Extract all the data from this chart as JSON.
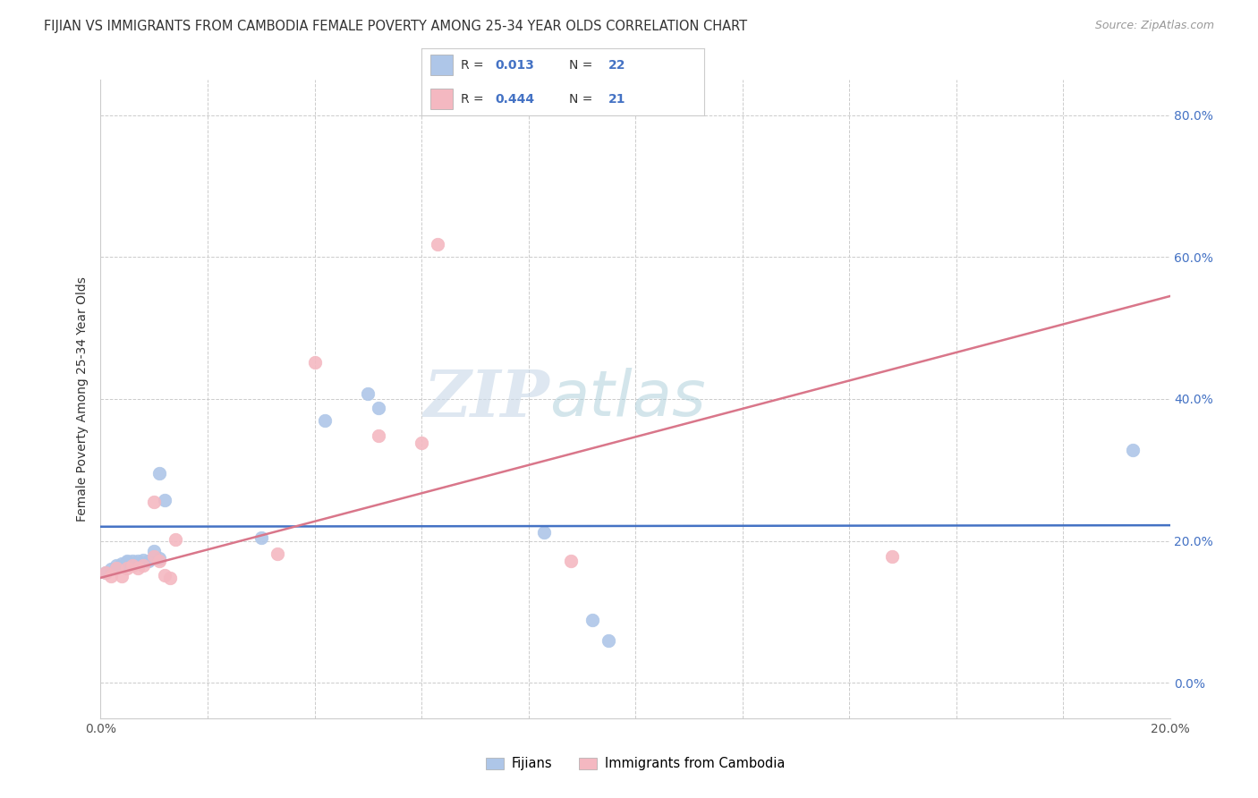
{
  "title": "FIJIAN VS IMMIGRANTS FROM CAMBODIA FEMALE POVERTY AMONG 25-34 YEAR OLDS CORRELATION CHART",
  "source": "Source: ZipAtlas.com",
  "ylabel": "Female Poverty Among 25-34 Year Olds",
  "xmin": 0.0,
  "xmax": 0.2,
  "ymin": -0.05,
  "ymax": 0.85,
  "ytick_vals": [
    0.0,
    0.2,
    0.4,
    0.6,
    0.8
  ],
  "xtick_vals": [
    0.0,
    0.02,
    0.04,
    0.06,
    0.08,
    0.1,
    0.12,
    0.14,
    0.16,
    0.18,
    0.2
  ],
  "r_fijians": "0.013",
  "n_fijians": "22",
  "r_cambodia": "0.444",
  "n_cambodia": "21",
  "fijian_color": "#aec6e8",
  "cambodia_color": "#f4b8c1",
  "fijian_line_color": "#4472c4",
  "cambodia_line_color": "#d9768a",
  "watermark_zip": "ZIP",
  "watermark_atlas": "atlas",
  "fijian_x": [
    0.001,
    0.002,
    0.003,
    0.004,
    0.005,
    0.005,
    0.006,
    0.007,
    0.008,
    0.009,
    0.01,
    0.011,
    0.011,
    0.012,
    0.03,
    0.042,
    0.05,
    0.052,
    0.083,
    0.092,
    0.095,
    0.193
  ],
  "fijian_y": [
    0.155,
    0.16,
    0.165,
    0.168,
    0.17,
    0.172,
    0.172,
    0.172,
    0.173,
    0.172,
    0.185,
    0.175,
    0.295,
    0.258,
    0.205,
    0.37,
    0.408,
    0.388,
    0.212,
    0.088,
    0.06,
    0.328
  ],
  "cambodia_x": [
    0.001,
    0.002,
    0.003,
    0.004,
    0.005,
    0.006,
    0.007,
    0.008,
    0.01,
    0.01,
    0.011,
    0.012,
    0.013,
    0.014,
    0.033,
    0.04,
    0.052,
    0.06,
    0.063,
    0.088,
    0.148
  ],
  "cambodia_y": [
    0.155,
    0.15,
    0.162,
    0.15,
    0.162,
    0.165,
    0.162,
    0.165,
    0.255,
    0.178,
    0.172,
    0.152,
    0.148,
    0.202,
    0.182,
    0.452,
    0.348,
    0.338,
    0.618,
    0.172,
    0.178
  ],
  "fijian_trendline_x": [
    0.0,
    0.2
  ],
  "fijian_trendline_y": [
    0.22,
    0.222
  ],
  "cambodia_trendline_x": [
    0.0,
    0.2
  ],
  "cambodia_trendline_y": [
    0.148,
    0.545
  ],
  "legend_entries": [
    {
      "label": "Fijians",
      "color": "#aec6e8"
    },
    {
      "label": "Immigrants from Cambodia",
      "color": "#f4b8c1"
    }
  ]
}
